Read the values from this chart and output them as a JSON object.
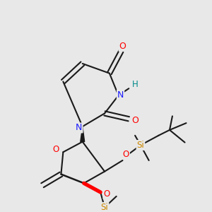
{
  "bg_color": "#e8e8e8",
  "colors": {
    "O": "#ff0000",
    "N": "#1a1aff",
    "Si": "#cc8800",
    "H": "#008888",
    "bond": "#1a1a1a"
  },
  "lw": 1.5,
  "fs": 7.5
}
